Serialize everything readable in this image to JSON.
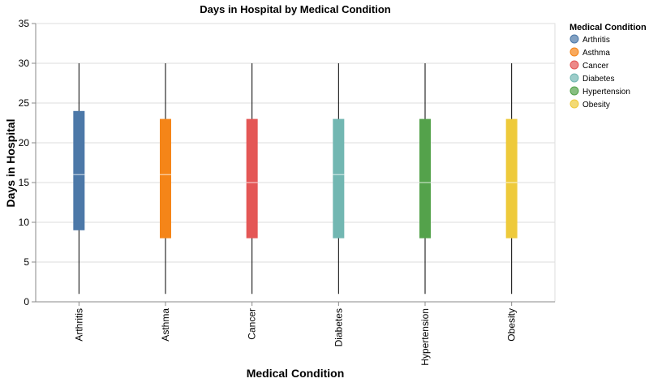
{
  "chart_data": {
    "type": "boxplot",
    "title": "Days in Hospital by Medical Condition",
    "xlabel": "Medical Condition",
    "ylabel": "Days in Hospital",
    "ylim": [
      0,
      35
    ],
    "yticks": [
      0,
      5,
      10,
      15,
      20,
      25,
      30,
      35
    ],
    "grid": true,
    "categories": [
      "Arthritis",
      "Asthma",
      "Cancer",
      "Diabetes",
      "Hypertension",
      "Obesity"
    ],
    "series": [
      {
        "name": "Arthritis",
        "min": 1,
        "q1": 9,
        "median": 16,
        "q3": 24,
        "max": 30,
        "color": "#4c78a8"
      },
      {
        "name": "Asthma",
        "min": 1,
        "q1": 8,
        "median": 16,
        "q3": 23,
        "max": 30,
        "color": "#f58518"
      },
      {
        "name": "Cancer",
        "min": 1,
        "q1": 8,
        "median": 15,
        "q3": 23,
        "max": 30,
        "color": "#e45756"
      },
      {
        "name": "Diabetes",
        "min": 1,
        "q1": 8,
        "median": 16,
        "q3": 23,
        "max": 30,
        "color": "#72b7b2"
      },
      {
        "name": "Hypertension",
        "min": 1,
        "q1": 8,
        "median": 15,
        "q3": 23,
        "max": 30,
        "color": "#54a24b"
      },
      {
        "name": "Obesity",
        "min": 1,
        "q1": 8,
        "median": 15,
        "q3": 23,
        "max": 30,
        "color": "#eeca3b"
      }
    ],
    "legend": {
      "title": "Medical Condition",
      "position": "top-right"
    }
  }
}
